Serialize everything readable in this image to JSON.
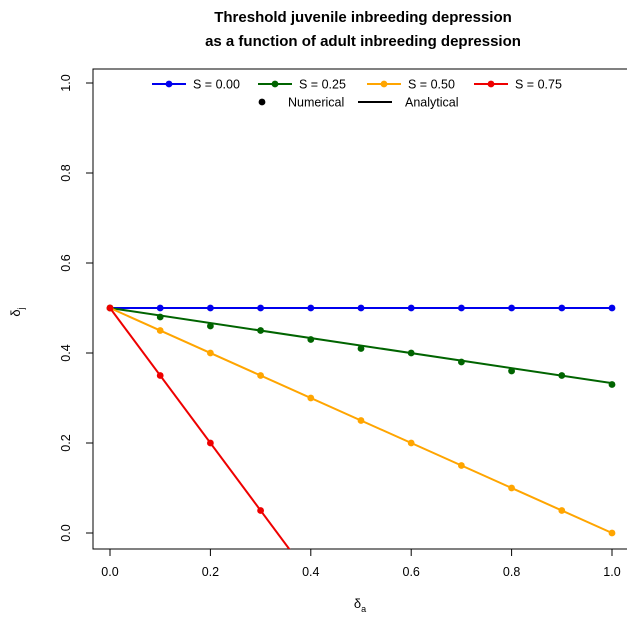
{
  "chart_data": {
    "type": "line",
    "title_lines": [
      "Threshold juvenile inbreeding depression",
      "as a function of adult inbreeding depression"
    ],
    "xlabel": {
      "main": "δ",
      "sub": "a"
    },
    "ylabel": {
      "main": "δ",
      "sub": "j"
    },
    "xlim": [
      0,
      1
    ],
    "ylim": [
      0,
      1
    ],
    "xticks": [
      "0.0",
      "0.2",
      "0.4",
      "0.6",
      "0.8",
      "1.0"
    ],
    "yticks": [
      "0.0",
      "0.2",
      "0.4",
      "0.6",
      "0.8",
      "1.0"
    ],
    "grid": false,
    "legend_position": "top",
    "legend_marker_labels": [
      "Numerical",
      "Analytical"
    ],
    "series": [
      {
        "name": "S = 0.00",
        "color": "#0000ee",
        "analytical": {
          "x": [
            0,
            1
          ],
          "y": [
            0.5,
            0.5
          ]
        },
        "numerical": {
          "x": [
            0,
            0.1,
            0.2,
            0.3,
            0.4,
            0.5,
            0.6,
            0.7,
            0.8,
            0.9,
            1.0
          ],
          "y": [
            0.5,
            0.5,
            0.5,
            0.5,
            0.5,
            0.5,
            0.5,
            0.5,
            0.5,
            0.5,
            0.5
          ]
        }
      },
      {
        "name": "S = 0.25",
        "color": "#006400",
        "analytical": {
          "x": [
            0,
            1
          ],
          "y": [
            0.5,
            0.333
          ]
        },
        "numerical": {
          "x": [
            0,
            0.1,
            0.2,
            0.3,
            0.4,
            0.5,
            0.6,
            0.7,
            0.8,
            0.9,
            1.0
          ],
          "y": [
            0.5,
            0.48,
            0.46,
            0.45,
            0.43,
            0.41,
            0.4,
            0.38,
            0.36,
            0.35,
            0.33
          ]
        }
      },
      {
        "name": "S = 0.50",
        "color": "#ffa500",
        "analytical": {
          "x": [
            0,
            1
          ],
          "y": [
            0.5,
            0.0
          ]
        },
        "numerical": {
          "x": [
            0,
            0.1,
            0.2,
            0.3,
            0.4,
            0.5,
            0.6,
            0.7,
            0.8,
            0.9,
            1.0
          ],
          "y": [
            0.5,
            0.45,
            0.4,
            0.35,
            0.3,
            0.25,
            0.2,
            0.15,
            0.1,
            0.05,
            0.0
          ]
        }
      },
      {
        "name": "S = 0.75",
        "color": "#ee0000",
        "analytical": {
          "x": [
            0,
            0.36
          ],
          "y": [
            0.5,
            -0.04
          ]
        },
        "numerical": {
          "x": [
            0,
            0.1,
            0.2,
            0.3
          ],
          "y": [
            0.5,
            0.35,
            0.2,
            0.05
          ]
        }
      }
    ]
  }
}
